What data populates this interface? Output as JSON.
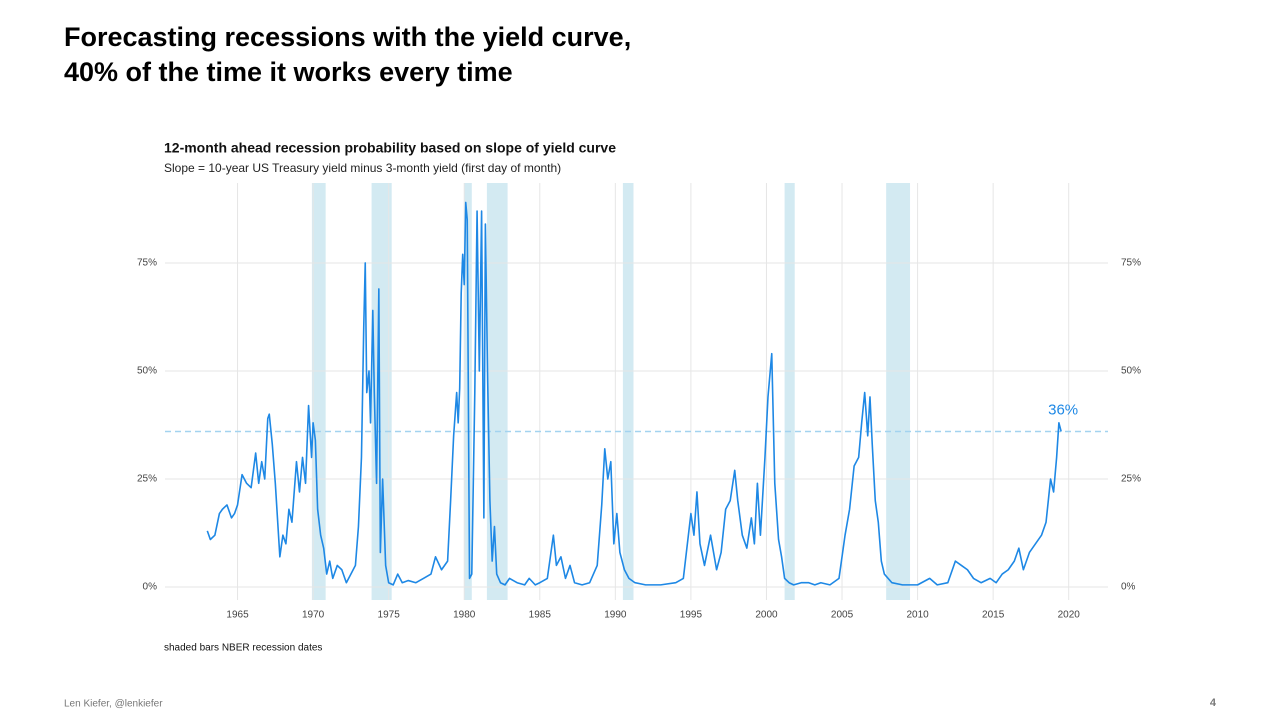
{
  "slide": {
    "title_lines": [
      "Forecasting recessions with the yield curve,",
      "40% of the time it works every time"
    ],
    "footer": "Len Kiefer, @lenkiefer",
    "page": "4"
  },
  "chart_data": {
    "type": "line",
    "title": "12-month ahead recession probability based on slope of yield curve",
    "subtitle": "Slope = 10-year US Treasury yield minus 3-month yield (first day of month)",
    "caption": "shaded bars NBER recession dates",
    "x": [
      1963.0,
      1963.2,
      1963.5,
      1963.8,
      1964.0,
      1964.3,
      1964.6,
      1964.8,
      1965.0,
      1965.3,
      1965.6,
      1965.9,
      1966.2,
      1966.4,
      1966.6,
      1966.8,
      1967.0,
      1967.1,
      1967.3,
      1967.5,
      1967.8,
      1968.0,
      1968.2,
      1968.4,
      1968.6,
      1968.9,
      1969.1,
      1969.3,
      1969.5,
      1969.7,
      1969.9,
      1970.0,
      1970.15,
      1970.3,
      1970.5,
      1970.7,
      1970.9,
      1971.1,
      1971.3,
      1971.6,
      1971.9,
      1972.2,
      1972.5,
      1972.8,
      1973.0,
      1973.2,
      1973.35,
      1973.45,
      1973.55,
      1973.7,
      1973.8,
      1973.95,
      1974.05,
      1974.2,
      1974.35,
      1974.45,
      1974.6,
      1974.8,
      1975.0,
      1975.3,
      1975.6,
      1975.9,
      1976.3,
      1976.8,
      1977.3,
      1977.8,
      1978.1,
      1978.5,
      1978.9,
      1979.1,
      1979.3,
      1979.5,
      1979.6,
      1979.7,
      1979.8,
      1979.9,
      1980.0,
      1980.1,
      1980.2,
      1980.35,
      1980.5,
      1980.7,
      1980.85,
      1981.0,
      1981.15,
      1981.3,
      1981.4,
      1981.55,
      1981.7,
      1981.85,
      1982.0,
      1982.15,
      1982.4,
      1982.7,
      1983.0,
      1983.5,
      1984.0,
      1984.3,
      1984.7,
      1985.0,
      1985.5,
      1985.9,
      1986.1,
      1986.4,
      1986.7,
      1987.0,
      1987.3,
      1987.8,
      1988.3,
      1988.8,
      1989.1,
      1989.3,
      1989.5,
      1989.7,
      1989.9,
      1990.1,
      1990.3,
      1990.6,
      1990.9,
      1991.3,
      1992.0,
      1993.0,
      1994.0,
      1994.5,
      1995.0,
      1995.2,
      1995.4,
      1995.6,
      1995.9,
      1996.3,
      1996.7,
      1997.0,
      1997.3,
      1997.6,
      1997.9,
      1998.1,
      1998.4,
      1998.7,
      1999.0,
      1999.2,
      1999.4,
      1999.6,
      1999.9,
      2000.1,
      2000.35,
      2000.55,
      2000.8,
      2001.0,
      2001.2,
      2001.5,
      2001.8,
      2002.3,
      2002.8,
      2003.2,
      2003.6,
      2004.2,
      2004.8,
      2005.2,
      2005.5,
      2005.8,
      2006.1,
      2006.3,
      2006.5,
      2006.7,
      2006.85,
      2007.0,
      2007.2,
      2007.4,
      2007.6,
      2007.8,
      2008.3,
      2009.0,
      2010.0,
      2010.8,
      2011.3,
      2012.0,
      2012.5,
      2012.9,
      2013.3,
      2013.7,
      2014.2,
      2014.8,
      2015.2,
      2015.6,
      2016.0,
      2016.4,
      2016.7,
      2017.0,
      2017.4,
      2017.8,
      2018.2,
      2018.5,
      2018.8,
      2019.0,
      2019.2,
      2019.35,
      2019.5
    ],
    "series": [
      {
        "color": "#1e88e5",
        "values": [
          13,
          11,
          12,
          17,
          18,
          19,
          16,
          17,
          19,
          26,
          24,
          23,
          31,
          24,
          29,
          25,
          39,
          40,
          33,
          24,
          7,
          12,
          10,
          18,
          15,
          29,
          22,
          30,
          24,
          42,
          30,
          38,
          34,
          18,
          12,
          9,
          3,
          6,
          2,
          5,
          4,
          1,
          3,
          5,
          14,
          30,
          60,
          75,
          45,
          50,
          38,
          64,
          45,
          24,
          69,
          8,
          25,
          5,
          1,
          0.5,
          3,
          1,
          1.5,
          1,
          2,
          3,
          7,
          4,
          6,
          20,
          35,
          45,
          38,
          46,
          68,
          77,
          70,
          89,
          85,
          2,
          3,
          45,
          87,
          50,
          87,
          16,
          84,
          48,
          20,
          6,
          14,
          3,
          1,
          0.5,
          2,
          1,
          0.5,
          2,
          0.5,
          1,
          2,
          12,
          5,
          7,
          2,
          5,
          1,
          0.5,
          1,
          5,
          19,
          32,
          25,
          29,
          10,
          17,
          8,
          4,
          2,
          1,
          0.5,
          0.5,
          1,
          2,
          17,
          12,
          22,
          10,
          5,
          12,
          4,
          8,
          18,
          20,
          27,
          20,
          12,
          9,
          16,
          10,
          24,
          12,
          30,
          44,
          54,
          24,
          11,
          7,
          2,
          1,
          0.5,
          1,
          1,
          0.5,
          1,
          0.5,
          2,
          12,
          18,
          28,
          30,
          38,
          45,
          35,
          44,
          33,
          20,
          15,
          6,
          3,
          1,
          0.5,
          0.5,
          2,
          0.5,
          1,
          6,
          5,
          4,
          2,
          1,
          2,
          1,
          3,
          4,
          6,
          9,
          4,
          8,
          10,
          12,
          15,
          25,
          22,
          30,
          38,
          36
        ]
      }
    ],
    "recessions": [
      {
        "start": 1969.92,
        "end": 1970.83
      },
      {
        "start": 1973.87,
        "end": 1975.2
      },
      {
        "start": 1980.0,
        "end": 1980.5
      },
      {
        "start": 1981.5,
        "end": 1982.87
      },
      {
        "start": 1990.5,
        "end": 1991.2
      },
      {
        "start": 2001.2,
        "end": 2001.87
      },
      {
        "start": 2007.92,
        "end": 2009.5
      }
    ],
    "recession_color": "#d3eaf2",
    "hline": {
      "value": 36,
      "label": "36%",
      "color": "#a3d3ef"
    },
    "xlim": [
      1960.2,
      2022.6
    ],
    "xticks": [
      1965,
      1970,
      1975,
      1980,
      1985,
      1990,
      1995,
      2000,
      2005,
      2010,
      2015,
      2020
    ],
    "ylim": [
      -3,
      93.5
    ],
    "yticks": [
      {
        "value": 0,
        "label": "0%"
      },
      {
        "value": 25,
        "label": "25%"
      },
      {
        "value": 50,
        "label": "50%"
      },
      {
        "value": 75,
        "label": "75%"
      }
    ],
    "y2lim": [
      -3,
      93.5
    ],
    "y2ticks": [
      {
        "value": 0,
        "label": "0%"
      },
      {
        "value": 25,
        "label": "25%"
      },
      {
        "value": 50,
        "label": "50%"
      },
      {
        "value": 75,
        "label": "75%"
      }
    ],
    "grid": true
  }
}
